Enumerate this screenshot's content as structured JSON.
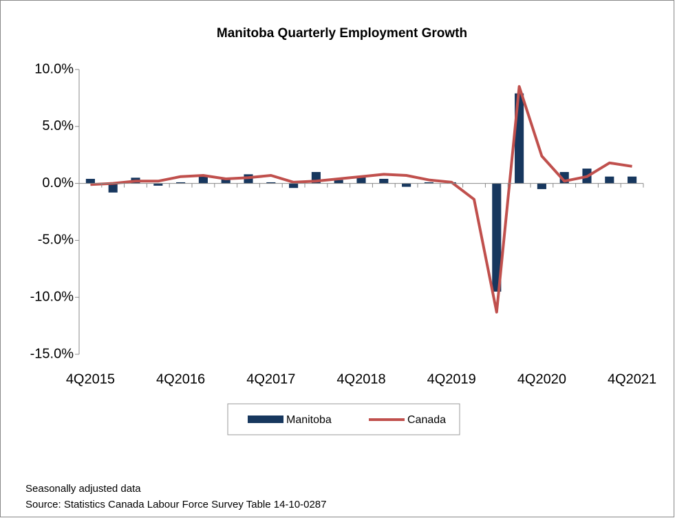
{
  "chart_data": {
    "type": "bar-line",
    "title": "Manitoba Quarterly Employment Growth",
    "categories": [
      "4Q2015",
      null,
      null,
      null,
      "4Q2016",
      null,
      null,
      null,
      "4Q2017",
      null,
      null,
      null,
      "4Q2018",
      null,
      null,
      null,
      "4Q2019",
      null,
      null,
      null,
      "4Q2020",
      null,
      null,
      null,
      "4Q2021"
    ],
    "series": [
      {
        "name": "Manitoba",
        "color": "#17375e",
        "kind": "bar",
        "values": [
          0.4,
          -0.8,
          0.5,
          -0.2,
          0.1,
          0.6,
          0.5,
          0.8,
          0.1,
          -0.4,
          1.0,
          0.3,
          0.6,
          0.4,
          -0.3,
          0.1,
          0.1,
          0.0,
          -9.5,
          7.9,
          -0.5,
          1.0,
          1.3,
          0.6,
          0.6
        ]
      },
      {
        "name": "Canada",
        "color": "#c0504d",
        "kind": "line",
        "values": [
          -0.1,
          0.0,
          0.2,
          0.2,
          0.6,
          0.7,
          0.4,
          0.5,
          0.7,
          0.1,
          0.2,
          0.4,
          0.6,
          0.8,
          0.7,
          0.3,
          0.1,
          -1.4,
          -11.3,
          8.5,
          2.4,
          0.2,
          0.6,
          1.8,
          1.5
        ]
      }
    ],
    "ylim": [
      -15,
      10
    ],
    "yticks": [
      {
        "value": -15,
        "label": "-15.0%"
      },
      {
        "value": -10,
        "label": "-10.0%"
      },
      {
        "value": -5,
        "label": "-5.0%"
      },
      {
        "value": 0,
        "label": "0.0%"
      },
      {
        "value": 5,
        "label": "5.0%"
      },
      {
        "value": 10,
        "label": "10.0%"
      }
    ],
    "legend": "bottom",
    "notes": [
      "Seasonally adjusted data",
      "Source: Statistics Canada Labour Force Survey Table 14-10-0287"
    ]
  }
}
